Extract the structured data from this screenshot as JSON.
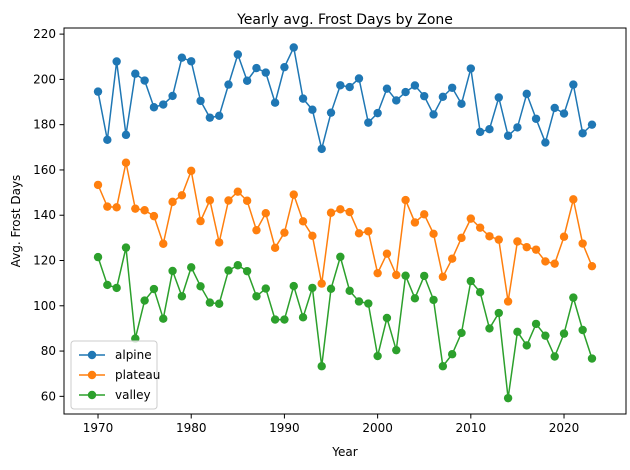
{
  "chart_data": {
    "type": "line",
    "title": "Yearly avg. Frost Days by Zone",
    "xlabel": "Year",
    "ylabel": "Avg. Frost Days",
    "xlim": [
      1966.35,
      2026.65
    ],
    "ylim": [
      52.2,
      222.7
    ],
    "xticks": [
      1970,
      1980,
      1990,
      2000,
      2010,
      2020
    ],
    "yticks": [
      60,
      80,
      100,
      120,
      140,
      160,
      180,
      200,
      220
    ],
    "grid": false,
    "legend_position": "lower-left",
    "x": [
      1970,
      1971,
      1972,
      1973,
      1974,
      1975,
      1976,
      1977,
      1978,
      1979,
      1980,
      1981,
      1982,
      1983,
      1984,
      1985,
      1986,
      1987,
      1988,
      1989,
      1990,
      1991,
      1992,
      1993,
      1994,
      1995,
      1996,
      1997,
      1998,
      1999,
      2000,
      2001,
      2002,
      2003,
      2004,
      2005,
      2006,
      2007,
      2008,
      2009,
      2010,
      2011,
      2012,
      2013,
      2014,
      2015,
      2016,
      2017,
      2018,
      2019,
      2020,
      2021,
      2022,
      2023
    ],
    "series": [
      {
        "name": "alpine",
        "color": "#1f77b4",
        "values": [
          194.6,
          173.3,
          207.9,
          175.5,
          202.5,
          199.5,
          187.7,
          188.9,
          192.7,
          209.6,
          208.0,
          190.5,
          183.1,
          183.9,
          197.7,
          211.0,
          199.4,
          205.0,
          203.0,
          189.7,
          205.4,
          214.1,
          191.5,
          186.6,
          169.3,
          185.3,
          197.4,
          196.6,
          200.4,
          180.9,
          185.1,
          195.9,
          190.7,
          194.4,
          197.3,
          192.6,
          184.5,
          192.3,
          196.3,
          189.2,
          204.8,
          176.8,
          178.0,
          192.0,
          175.1,
          178.8,
          193.6,
          182.6,
          172.1,
          187.4,
          184.9,
          197.7,
          176.2,
          180.0
        ]
      },
      {
        "name": "plateau",
        "color": "#ff7f0e",
        "values": [
          153.4,
          143.8,
          143.5,
          163.2,
          142.9,
          142.2,
          139.6,
          127.4,
          145.9,
          148.8,
          159.6,
          137.4,
          146.6,
          128.0,
          146.5,
          150.4,
          146.4,
          133.4,
          140.9,
          125.6,
          132.3,
          149.1,
          137.3,
          130.9,
          109.8,
          141.1,
          142.6,
          141.4,
          132.0,
          132.9,
          114.4,
          123.0,
          113.6,
          146.7,
          136.8,
          140.4,
          131.8,
          112.8,
          120.8,
          130.0,
          138.5,
          134.5,
          130.7,
          129.2,
          101.9,
          128.4,
          125.9,
          124.8,
          119.6,
          118.6,
          130.5,
          147.0,
          127.5,
          117.5
        ]
      },
      {
        "name": "valley",
        "color": "#2ca02c",
        "values": [
          121.5,
          109.2,
          107.9,
          125.7,
          85.5,
          102.3,
          107.4,
          94.3,
          115.4,
          104.2,
          117.0,
          108.6,
          101.4,
          100.9,
          115.6,
          117.9,
          115.3,
          104.2,
          107.6,
          93.9,
          93.9,
          108.7,
          94.9,
          107.9,
          73.3,
          107.5,
          121.6,
          106.6,
          101.9,
          101.0,
          77.8,
          94.6,
          80.4,
          113.3,
          103.3,
          113.2,
          102.6,
          73.3,
          78.6,
          88.0,
          110.9,
          106.0,
          90.0,
          96.8,
          59.2,
          88.5,
          82.5,
          92.0,
          86.8,
          77.6,
          87.7,
          103.6,
          89.3,
          76.7
        ]
      }
    ]
  }
}
